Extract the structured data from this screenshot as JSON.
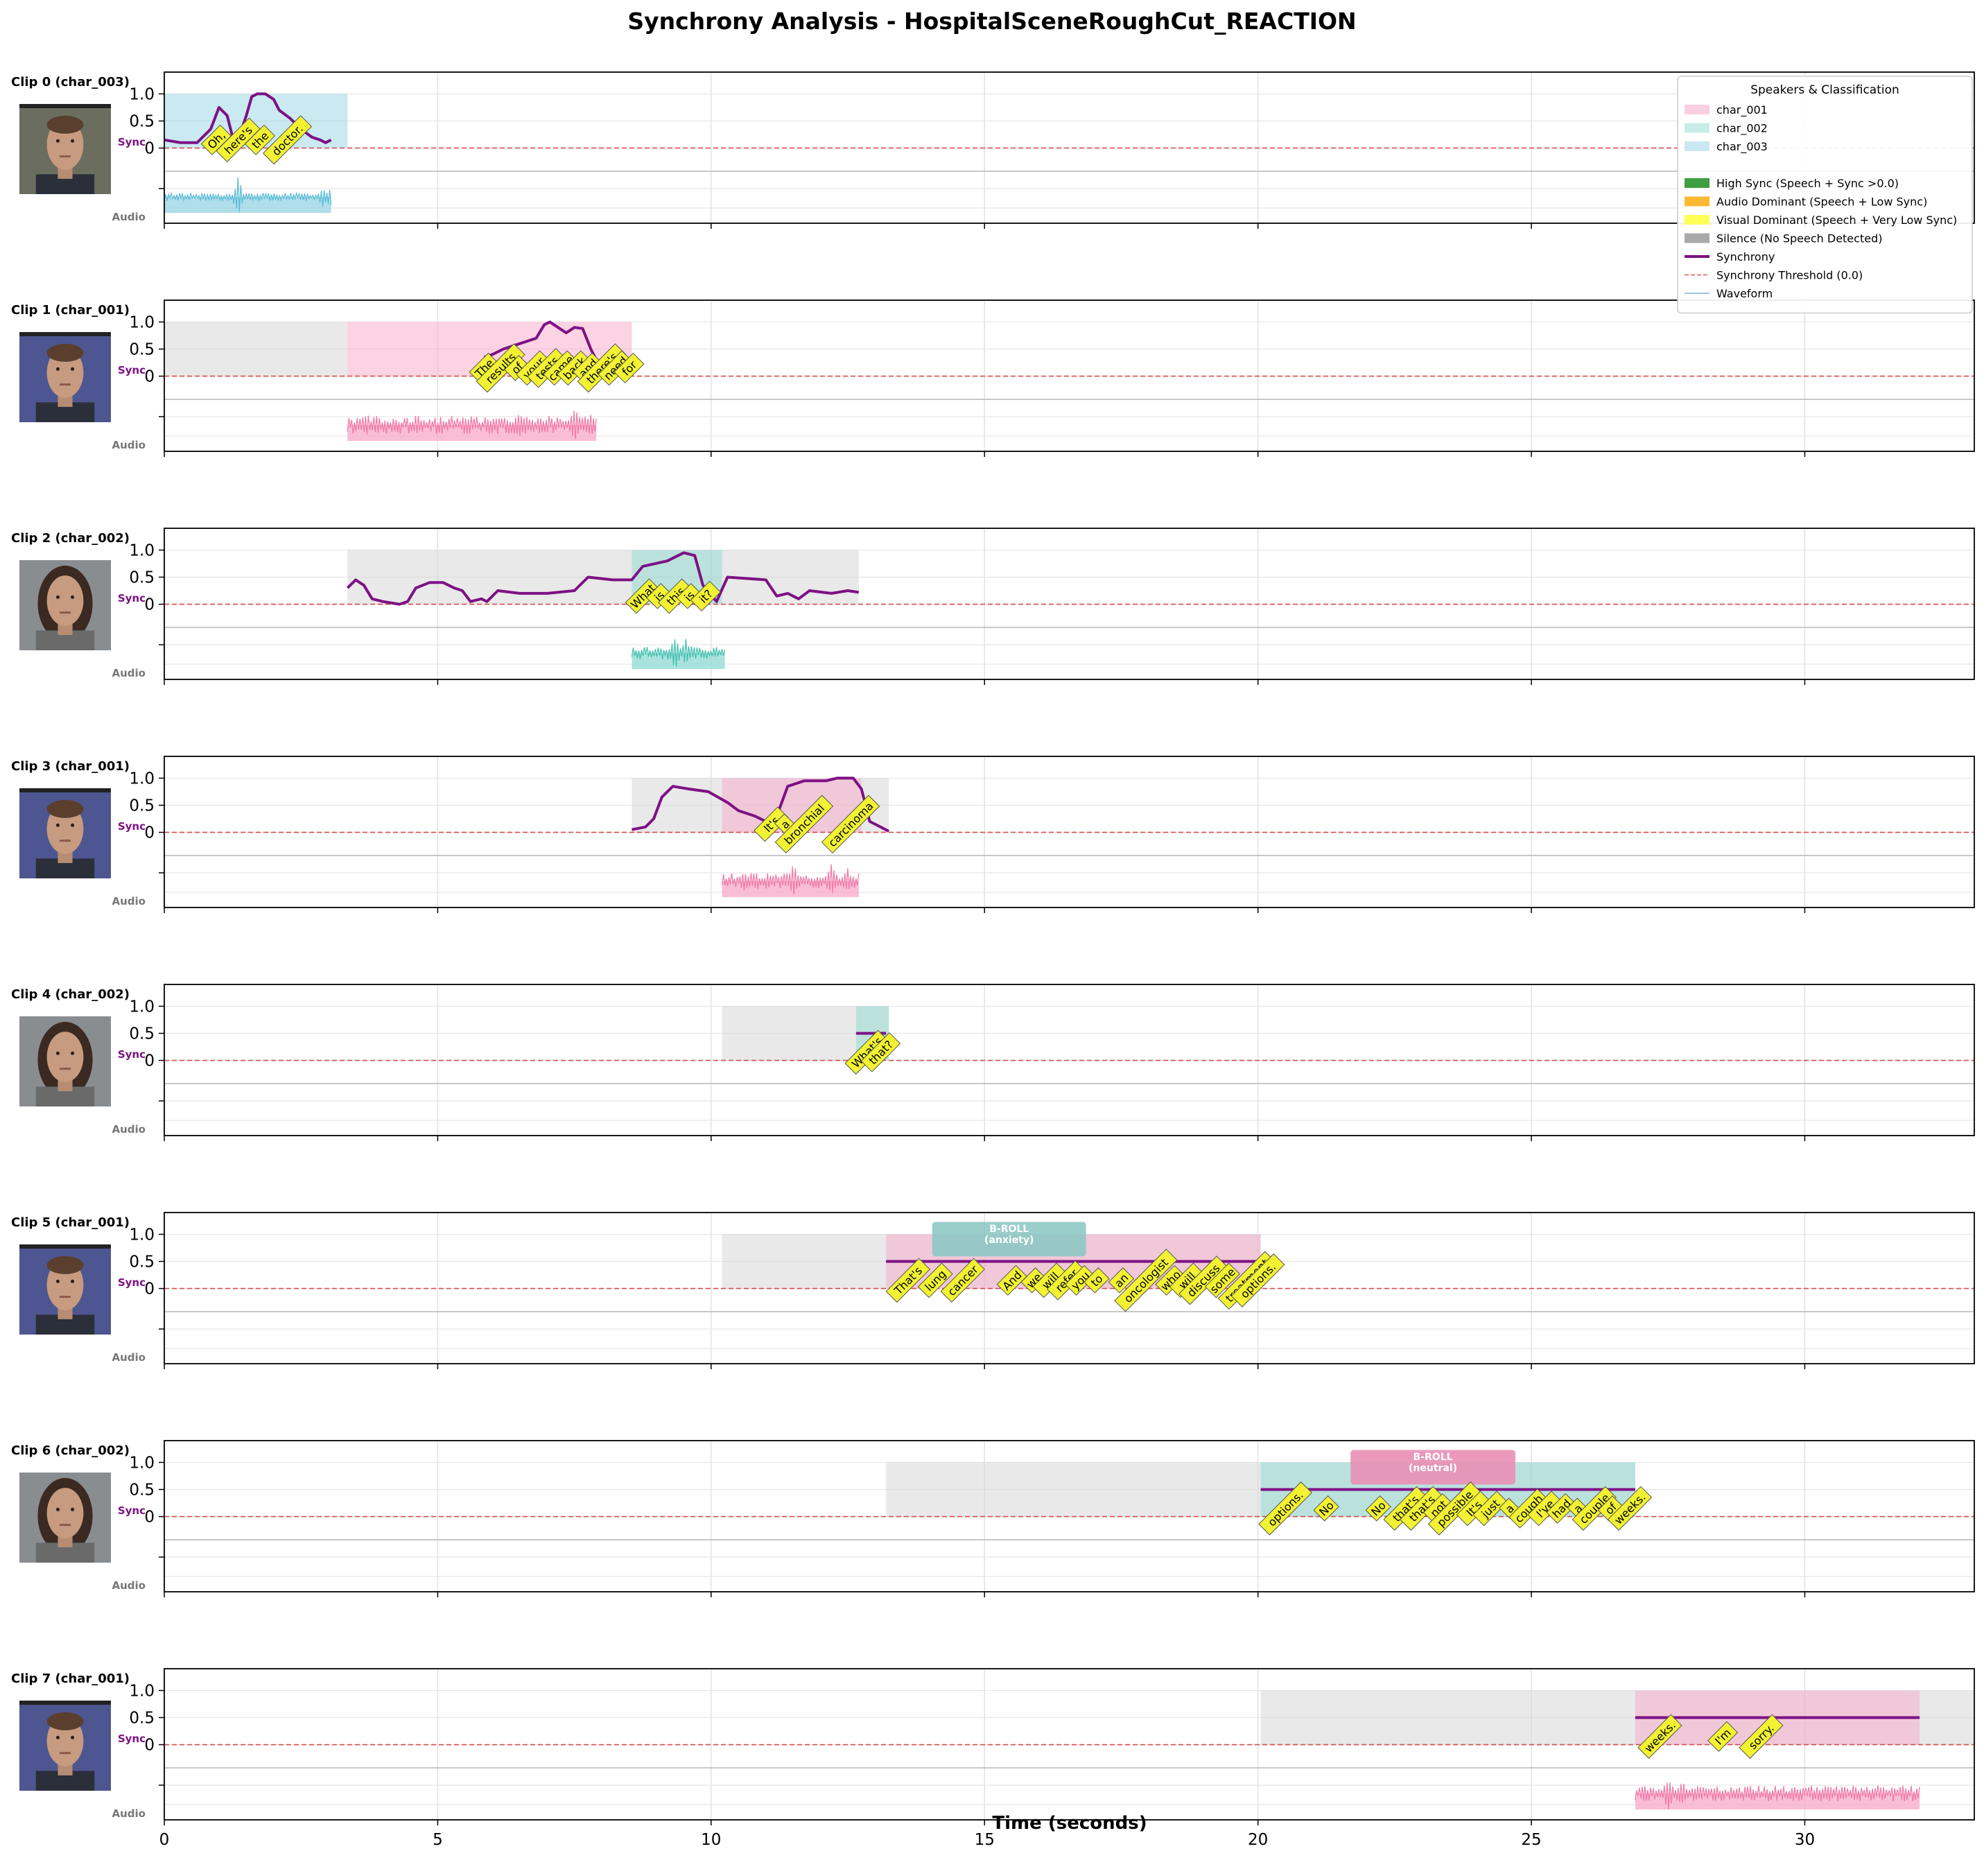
{
  "title": "Synchrony Analysis - HospitalSceneRoughCut_REACTION",
  "xlabel": "Time (seconds)",
  "x_ticks": [
    0,
    5,
    10,
    15,
    20,
    25,
    30
  ],
  "y_ticks": [
    "1.0",
    "0.5",
    "0"
  ],
  "row_labels": {
    "sync": "Sync",
    "audio": "Audio"
  },
  "colors": {
    "char_001": "#f7a8c8",
    "char_002": "#8ed9d1",
    "char_003": "#95d3e3",
    "char_001_wave": "#f07aa8",
    "char_002_wave": "#45c0b0",
    "char_003_wave": "#5bbcd8",
    "silence": "#d3d3d3",
    "sync_line": "#7d1184",
    "threshold": "#d84b4b",
    "word_box": "#f2f232"
  },
  "legend": {
    "title": "Speakers & Classification",
    "entries": [
      {
        "label": "char_001",
        "kind": "patch",
        "color": "#fad0e1"
      },
      {
        "label": "char_002",
        "kind": "patch",
        "color": "#c8ede9"
      },
      {
        "label": "char_003",
        "kind": "patch",
        "color": "#c9e8f1"
      },
      {
        "label": "",
        "kind": "blank",
        "color": ""
      },
      {
        "label": "High Sync (Speech + Sync >0.0)",
        "kind": "patch",
        "color": "#3f9e3f"
      },
      {
        "label": "Audio Dominant (Speech + Low Sync)",
        "kind": "patch",
        "color": "#ffb833"
      },
      {
        "label": "Visual Dominant (Speech + Very Low Sync)",
        "kind": "patch",
        "color": "#ffff55"
      },
      {
        "label": "Silence (No Speech Detected)",
        "kind": "patch",
        "color": "#a9a9a9"
      },
      {
        "label": "Synchrony",
        "kind": "line",
        "color": "#7d1184"
      },
      {
        "label": "Synchrony Threshold (0.0)",
        "kind": "dash",
        "color": "#e07070"
      },
      {
        "label": "Waveform",
        "kind": "thin",
        "color": "#7fb6d8"
      }
    ]
  },
  "chart_data": {
    "type": "line",
    "title": "Synchrony Analysis - HospitalSceneRoughCut_REACTION",
    "xlabel": "Time (seconds)",
    "xlim": [
      0,
      33.1
    ],
    "ylim_sync": [
      -0.3,
      1.3
    ],
    "grid": true,
    "threshold": 0.0,
    "legend_position": "top-right",
    "clips": [
      {
        "label": "Clip 0 (char_003)",
        "speaker": "char_003",
        "silence": null,
        "speech": [
          0,
          3.35
        ],
        "sync": [
          [
            0,
            0.15
          ],
          [
            0.3,
            0.1
          ],
          [
            0.6,
            0.1
          ],
          [
            0.85,
            0.35
          ],
          [
            1.0,
            0.75
          ],
          [
            1.15,
            0.6
          ],
          [
            1.25,
            0.2
          ],
          [
            1.35,
            0.15
          ],
          [
            1.5,
            0.6
          ],
          [
            1.6,
            0.95
          ],
          [
            1.7,
            1.0
          ],
          [
            1.85,
            1.0
          ],
          [
            2.0,
            0.9
          ],
          [
            2.1,
            0.7
          ],
          [
            2.3,
            0.55
          ],
          [
            2.5,
            0.35
          ],
          [
            2.7,
            0.2
          ],
          [
            2.85,
            0.15
          ],
          [
            2.95,
            0.1
          ],
          [
            3.05,
            0.15
          ]
        ],
        "audio": {
          "start": 0,
          "end": 3.05,
          "amp": 0.15,
          "spikes": [
            [
              1.35,
              1.0
            ],
            [
              2.9,
              0.55
            ],
            [
              3.05,
              0.6
            ]
          ]
        },
        "words": [
          {
            "t": 0.95,
            "text": "Oh,"
          },
          {
            "t": 1.35,
            "text": "here's"
          },
          {
            "t": 1.75,
            "text": "the"
          },
          {
            "t": 2.25,
            "text": "doctor."
          }
        ],
        "broll": null
      },
      {
        "label": "Clip 1 (char_001)",
        "speaker": "char_001",
        "silence": [
          0,
          3.35
        ],
        "speech": [
          3.35,
          8.55
        ],
        "sync": [
          [
            5.85,
            0.35
          ],
          [
            6.0,
            0.4
          ],
          [
            6.2,
            0.5
          ],
          [
            6.5,
            0.6
          ],
          [
            6.8,
            0.7
          ],
          [
            6.95,
            0.95
          ],
          [
            7.05,
            1.0
          ],
          [
            7.2,
            0.9
          ],
          [
            7.35,
            0.8
          ],
          [
            7.5,
            0.9
          ],
          [
            7.65,
            0.88
          ],
          [
            7.8,
            0.5
          ],
          [
            7.9,
            0.3
          ],
          [
            8.05,
            0.25
          ],
          [
            8.3,
            0.2
          ],
          [
            8.45,
            0.2
          ]
        ],
        "audio": {
          "start": 3.35,
          "end": 7.9,
          "amp": 0.35,
          "spikes": [
            [
              3.7,
              0.6
            ],
            [
              6.5,
              0.7
            ],
            [
              7.5,
              1.0
            ],
            [
              7.8,
              0.7
            ]
          ]
        },
        "words": [
          {
            "t": 5.85,
            "text": "The"
          },
          {
            "t": 6.15,
            "text": "results"
          },
          {
            "t": 6.45,
            "text": "of"
          },
          {
            "t": 6.75,
            "text": "your"
          },
          {
            "t": 7.0,
            "text": "tests"
          },
          {
            "t": 7.25,
            "text": "came"
          },
          {
            "t": 7.5,
            "text": "back"
          },
          {
            "t": 7.75,
            "text": "and"
          },
          {
            "t": 8.0,
            "text": "there's"
          },
          {
            "t": 8.25,
            "text": "need"
          },
          {
            "t": 8.5,
            "text": "for"
          }
        ],
        "broll": null
      },
      {
        "label": "Clip 2 (char_002)",
        "speaker": "char_002",
        "silence": [
          3.35,
          12.7
        ],
        "speech": [
          8.55,
          10.2
        ],
        "sync": [
          [
            3.35,
            0.3
          ],
          [
            3.5,
            0.45
          ],
          [
            3.65,
            0.35
          ],
          [
            3.8,
            0.1
          ],
          [
            4.0,
            0.05
          ],
          [
            4.3,
            0.0
          ],
          [
            4.45,
            0.05
          ],
          [
            4.6,
            0.3
          ],
          [
            4.85,
            0.4
          ],
          [
            5.1,
            0.4
          ],
          [
            5.3,
            0.3
          ],
          [
            5.45,
            0.25
          ],
          [
            5.6,
            0.05
          ],
          [
            5.8,
            0.1
          ],
          [
            5.9,
            0.05
          ],
          [
            6.1,
            0.25
          ],
          [
            6.5,
            0.2
          ],
          [
            7.0,
            0.2
          ],
          [
            7.5,
            0.25
          ],
          [
            7.75,
            0.5
          ],
          [
            8.2,
            0.45
          ],
          [
            8.55,
            0.45
          ],
          [
            8.75,
            0.7
          ],
          [
            9.2,
            0.8
          ],
          [
            9.5,
            0.95
          ],
          [
            9.7,
            0.9
          ],
          [
            9.85,
            0.35
          ],
          [
            10.1,
            0.05
          ],
          [
            10.3,
            0.5
          ],
          [
            11.0,
            0.45
          ],
          [
            11.2,
            0.15
          ],
          [
            11.4,
            0.2
          ],
          [
            11.6,
            0.1
          ],
          [
            11.8,
            0.25
          ],
          [
            12.2,
            0.2
          ],
          [
            12.5,
            0.25
          ],
          [
            12.7,
            0.22
          ]
        ],
        "audio": {
          "start": 8.55,
          "end": 10.25,
          "amp": 0.25,
          "spikes": [
            [
              9.35,
              1.0
            ],
            [
              9.55,
              0.7
            ]
          ]
        },
        "words": [
          {
            "t": 8.75,
            "text": "What"
          },
          {
            "t": 9.05,
            "text": "is"
          },
          {
            "t": 9.35,
            "text": "this"
          },
          {
            "t": 9.6,
            "text": "is"
          },
          {
            "t": 9.9,
            "text": "it?"
          }
        ],
        "broll": null
      },
      {
        "label": "Clip 3 (char_001)",
        "speaker": "char_001",
        "silence": [
          8.55,
          13.25
        ],
        "speech": [
          10.2,
          12.75
        ],
        "sync": [
          [
            8.55,
            0.05
          ],
          [
            8.8,
            0.1
          ],
          [
            8.95,
            0.25
          ],
          [
            9.1,
            0.65
          ],
          [
            9.3,
            0.85
          ],
          [
            9.6,
            0.8
          ],
          [
            9.95,
            0.75
          ],
          [
            10.3,
            0.55
          ],
          [
            10.5,
            0.4
          ],
          [
            10.8,
            0.3
          ],
          [
            11.0,
            0.2
          ],
          [
            11.2,
            0.3
          ],
          [
            11.4,
            0.85
          ],
          [
            11.7,
            0.95
          ],
          [
            12.1,
            0.95
          ],
          [
            12.3,
            1.0
          ],
          [
            12.6,
            1.0
          ],
          [
            12.75,
            0.8
          ],
          [
            12.9,
            0.2
          ],
          [
            13.25,
            0.02
          ]
        ],
        "audio": {
          "start": 10.2,
          "end": 12.7,
          "amp": 0.3,
          "spikes": [
            [
              10.6,
              0.6
            ],
            [
              11.5,
              0.9
            ],
            [
              12.2,
              0.8
            ],
            [
              12.5,
              0.6
            ]
          ]
        },
        "words": [
          {
            "t": 11.1,
            "text": "It's"
          },
          {
            "t": 11.35,
            "text": "a"
          },
          {
            "t": 11.7,
            "text": "bronchial"
          },
          {
            "t": 12.55,
            "text": "carcinoma"
          }
        ],
        "broll": null
      },
      {
        "label": "Clip 4 (char_002)",
        "speaker": "char_002",
        "silence": [
          10.2,
          13.25
        ],
        "speech": [
          12.65,
          13.25
        ],
        "sync": [
          [
            12.65,
            0.5
          ],
          [
            13.2,
            0.5
          ]
        ],
        "audio": null,
        "words": [
          {
            "t": 12.85,
            "text": "What's"
          },
          {
            "t": 13.1,
            "text": "that?"
          }
        ],
        "broll": null
      },
      {
        "label": "Clip 5 (char_001)",
        "speaker": "char_001",
        "silence": [
          10.2,
          20.05
        ],
        "speech": [
          13.2,
          20.05
        ],
        "sync": [
          [
            13.2,
            0.5
          ],
          [
            20.05,
            0.5
          ]
        ],
        "audio": null,
        "words": [
          {
            "t": 13.6,
            "text": "That's"
          },
          {
            "t": 14.1,
            "text": "lung"
          },
          {
            "t": 14.6,
            "text": "cancer"
          },
          {
            "t": 15.5,
            "text": "And"
          },
          {
            "t": 15.9,
            "text": "we"
          },
          {
            "t": 16.2,
            "text": "will"
          },
          {
            "t": 16.5,
            "text": "refer"
          },
          {
            "t": 16.75,
            "text": "you"
          },
          {
            "t": 17.05,
            "text": "to"
          },
          {
            "t": 17.5,
            "text": "an"
          },
          {
            "t": 17.95,
            "text": "oncologist"
          },
          {
            "t": 18.4,
            "text": "who"
          },
          {
            "t": 18.7,
            "text": "will"
          },
          {
            "t": 19.0,
            "text": "discuss"
          },
          {
            "t": 19.35,
            "text": "some"
          },
          {
            "t": 19.8,
            "text": "treatment"
          },
          {
            "t": 20.0,
            "text": "options."
          }
        ],
        "broll": {
          "start": 14.05,
          "end": 16.85,
          "title": "B-ROLL",
          "sub": "(anxiety)",
          "color": "#8ec9c6",
          "text_color": "#ffffff"
        }
      },
      {
        "label": "Clip 6 (char_002)",
        "speaker": "char_002",
        "silence": [
          13.2,
          26.9
        ],
        "speech": [
          20.05,
          26.9
        ],
        "sync": [
          [
            20.05,
            0.5
          ],
          [
            26.9,
            0.5
          ]
        ],
        "audio": null,
        "words": [
          {
            "t": 20.5,
            "text": "options."
          },
          {
            "t": 21.25,
            "text": "No"
          },
          {
            "t": 22.2,
            "text": "No"
          },
          {
            "t": 22.7,
            "text": "that's"
          },
          {
            "t": 23.0,
            "text": "that's"
          },
          {
            "t": 23.3,
            "text": "not"
          },
          {
            "t": 23.6,
            "text": "possible"
          },
          {
            "t": 23.95,
            "text": "It's"
          },
          {
            "t": 24.25,
            "text": "just"
          },
          {
            "t": 24.6,
            "text": "a"
          },
          {
            "t": 24.95,
            "text": "cough"
          },
          {
            "t": 25.25,
            "text": "I've"
          },
          {
            "t": 25.55,
            "text": "had"
          },
          {
            "t": 25.85,
            "text": "a"
          },
          {
            "t": 26.15,
            "text": "couple"
          },
          {
            "t": 26.45,
            "text": "of"
          },
          {
            "t": 26.8,
            "text": "weeks."
          }
        ],
        "broll": {
          "start": 21.7,
          "end": 24.7,
          "title": "B-ROLL",
          "sub": "(neutral)",
          "color": "#e98fb4",
          "text_color": "#ffffff"
        }
      },
      {
        "label": "Clip 7 (char_001)",
        "speaker": "char_001",
        "silence": [
          20.05,
          33.1
        ],
        "speech": [
          26.9,
          32.1
        ],
        "sync": [
          [
            26.9,
            0.5
          ],
          [
            32.1,
            0.5
          ]
        ],
        "audio": {
          "start": 26.9,
          "end": 32.1,
          "amp": 0.3,
          "spikes": [
            [
              27.05,
              0.45
            ],
            [
              27.5,
              0.9
            ],
            [
              27.75,
              0.75
            ],
            [
              29.0,
              0.4
            ]
          ]
        },
        "words": [
          {
            "t": 27.35,
            "text": "weeks."
          },
          {
            "t": 28.5,
            "text": "I'm"
          },
          {
            "t": 29.2,
            "text": "sorry."
          }
        ],
        "broll": null
      }
    ]
  }
}
